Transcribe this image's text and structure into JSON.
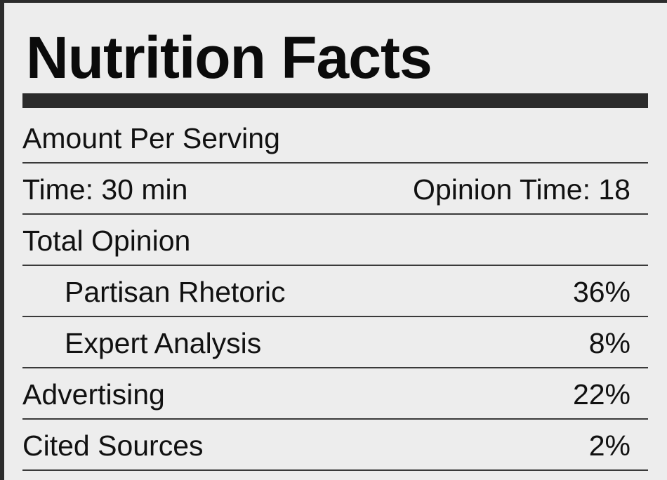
{
  "title": "Nutrition Facts",
  "serving_header": "Amount Per Serving",
  "time_row": {
    "label": "Time: 30 min",
    "value": "Opinion Time: 18"
  },
  "total_opinion": {
    "label": "Total Opinion"
  },
  "sub_items": [
    {
      "label": "Partisan Rhetoric",
      "value": "36%"
    },
    {
      "label": "Expert Analysis",
      "value": "8%"
    }
  ],
  "items": [
    {
      "label": "Advertising",
      "value": "22%"
    },
    {
      "label": "Cited Sources",
      "value": "2%"
    }
  ],
  "colors": {
    "background": "#ededed",
    "frame": "#2c2c2c",
    "bar": "#2b2b2b",
    "rule": "#3a3a3a"
  }
}
